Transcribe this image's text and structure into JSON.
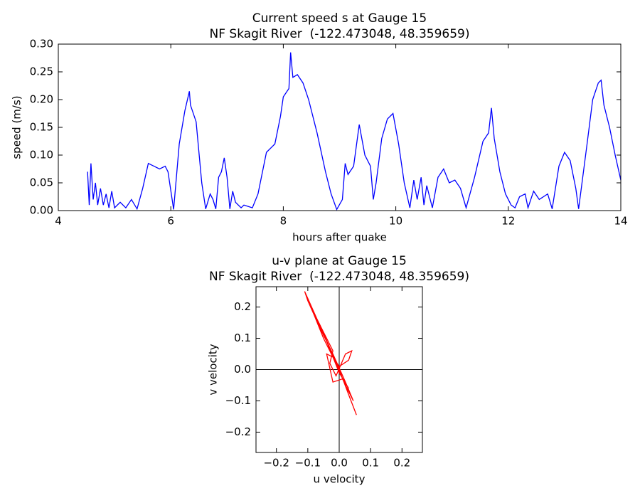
{
  "chart_data": [
    {
      "type": "line",
      "title": "Current speed s at Gauge 15",
      "subtitle": "NF Skagit River  (-122.473048, 48.359659)",
      "xlabel": "hours after quake",
      "ylabel": "speed (m/s)",
      "color": "#0000ff",
      "xlim": [
        4,
        14
      ],
      "ylim": [
        0,
        0.3
      ],
      "xticks": [
        4,
        6,
        8,
        10,
        12,
        14
      ],
      "yticks": [
        {
          "value": 0,
          "label": "0.00"
        },
        {
          "value": 0.05,
          "label": "0.05"
        },
        {
          "value": 0.1,
          "label": "0.10"
        },
        {
          "value": 0.15,
          "label": "0.15"
        },
        {
          "value": 0.2,
          "label": "0.20"
        },
        {
          "value": 0.25,
          "label": "0.25"
        },
        {
          "value": 0.3,
          "label": "0.30"
        }
      ],
      "x": [
        4.52,
        4.55,
        4.58,
        4.62,
        4.66,
        4.7,
        4.75,
        4.8,
        4.85,
        4.9,
        4.95,
        5.0,
        5.1,
        5.2,
        5.3,
        5.4,
        5.5,
        5.6,
        5.7,
        5.8,
        5.9,
        5.95,
        6.05,
        6.15,
        6.25,
        6.33,
        6.35,
        6.45,
        6.55,
        6.62,
        6.7,
        6.75,
        6.8,
        6.85,
        6.9,
        6.95,
        7.0,
        7.05,
        7.1,
        7.15,
        7.25,
        7.3,
        7.45,
        7.55,
        7.7,
        7.85,
        7.95,
        8.0,
        8.1,
        8.13,
        8.17,
        8.25,
        8.35,
        8.45,
        8.6,
        8.75,
        8.85,
        8.95,
        9.05,
        9.1,
        9.15,
        9.25,
        9.35,
        9.45,
        9.55,
        9.6,
        9.65,
        9.75,
        9.85,
        9.95,
        10.05,
        10.15,
        10.25,
        10.32,
        10.38,
        10.45,
        10.5,
        10.55,
        10.65,
        10.75,
        10.85,
        10.95,
        11.05,
        11.15,
        11.25,
        11.4,
        11.55,
        11.65,
        11.7,
        11.75,
        11.85,
        11.95,
        12.05,
        12.12,
        12.2,
        12.3,
        12.35,
        12.45,
        12.55,
        12.7,
        12.78,
        12.9,
        13.0,
        13.1,
        13.2,
        13.25,
        13.4,
        13.5,
        13.6,
        13.65,
        13.7,
        13.8,
        13.9,
        14.0
      ],
      "values": [
        0.07,
        0.01,
        0.085,
        0.02,
        0.05,
        0.01,
        0.04,
        0.01,
        0.03,
        0.005,
        0.035,
        0.005,
        0.015,
        0.005,
        0.02,
        0.003,
        0.04,
        0.085,
        0.08,
        0.075,
        0.08,
        0.07,
        0.002,
        0.12,
        0.18,
        0.215,
        0.19,
        0.16,
        0.05,
        0.003,
        0.03,
        0.02,
        0.003,
        0.06,
        0.07,
        0.095,
        0.06,
        0.003,
        0.035,
        0.015,
        0.005,
        0.01,
        0.005,
        0.03,
        0.105,
        0.12,
        0.17,
        0.205,
        0.22,
        0.285,
        0.24,
        0.245,
        0.23,
        0.2,
        0.14,
        0.07,
        0.03,
        0.002,
        0.02,
        0.085,
        0.065,
        0.08,
        0.155,
        0.1,
        0.08,
        0.02,
        0.05,
        0.13,
        0.165,
        0.175,
        0.12,
        0.05,
        0.005,
        0.055,
        0.02,
        0.06,
        0.01,
        0.045,
        0.005,
        0.06,
        0.075,
        0.05,
        0.055,
        0.04,
        0.005,
        0.06,
        0.125,
        0.14,
        0.185,
        0.13,
        0.07,
        0.03,
        0.01,
        0.005,
        0.025,
        0.03,
        0.005,
        0.035,
        0.02,
        0.03,
        0.003,
        0.08,
        0.105,
        0.09,
        0.04,
        0.003,
        0.12,
        0.2,
        0.23,
        0.235,
        0.19,
        0.15,
        0.1,
        0.055
      ]
    },
    {
      "type": "line",
      "title": "u-v plane at Gauge 15",
      "subtitle": "NF Skagit River  (-122.473048, 48.359659)",
      "xlabel": "u velocity",
      "ylabel": "v velocity",
      "color": "#ff0000",
      "zero_lines": true,
      "xlim": [
        -0.265,
        0.265
      ],
      "ylim": [
        -0.265,
        0.265
      ],
      "xticks": [
        {
          "value": -0.2,
          "label": "−0.2"
        },
        {
          "value": -0.1,
          "label": "−0.1"
        },
        {
          "value": 0,
          "label": "0.0"
        },
        {
          "value": 0.1,
          "label": "0.1"
        },
        {
          "value": 0.2,
          "label": "0.2"
        }
      ],
      "yticks": [
        {
          "value": -0.2,
          "label": "−0.2"
        },
        {
          "value": -0.1,
          "label": "−0.1"
        },
        {
          "value": 0,
          "label": "0.0"
        },
        {
          "value": 0.1,
          "label": "0.1"
        },
        {
          "value": 0.2,
          "label": "0.2"
        }
      ],
      "x": [
        0.055,
        0.03,
        0.0,
        -0.03,
        -0.07,
        -0.11,
        -0.1,
        -0.06,
        -0.02,
        0.02,
        0.045,
        0.02,
        -0.01,
        -0.04,
        -0.08,
        -0.05,
        -0.02,
        -0.03,
        -0.01,
        0.02,
        0.04,
        0.03,
        0.0,
        -0.02,
        -0.04,
        -0.02,
        0.01,
        0.03,
        0.0,
        -0.06,
        -0.09,
        -0.05,
        0.0
      ],
      "values": [
        -0.145,
        -0.08,
        0.0,
        0.07,
        0.16,
        0.25,
        0.22,
        0.13,
        0.05,
        -0.04,
        -0.1,
        -0.05,
        0.02,
        0.09,
        0.18,
        0.12,
        0.06,
        0.02,
        -0.02,
        0.05,
        0.06,
        0.03,
        0.01,
        0.04,
        0.05,
        -0.04,
        -0.03,
        -0.06,
        -0.01,
        0.14,
        0.2,
        0.1,
        0.0
      ]
    }
  ]
}
